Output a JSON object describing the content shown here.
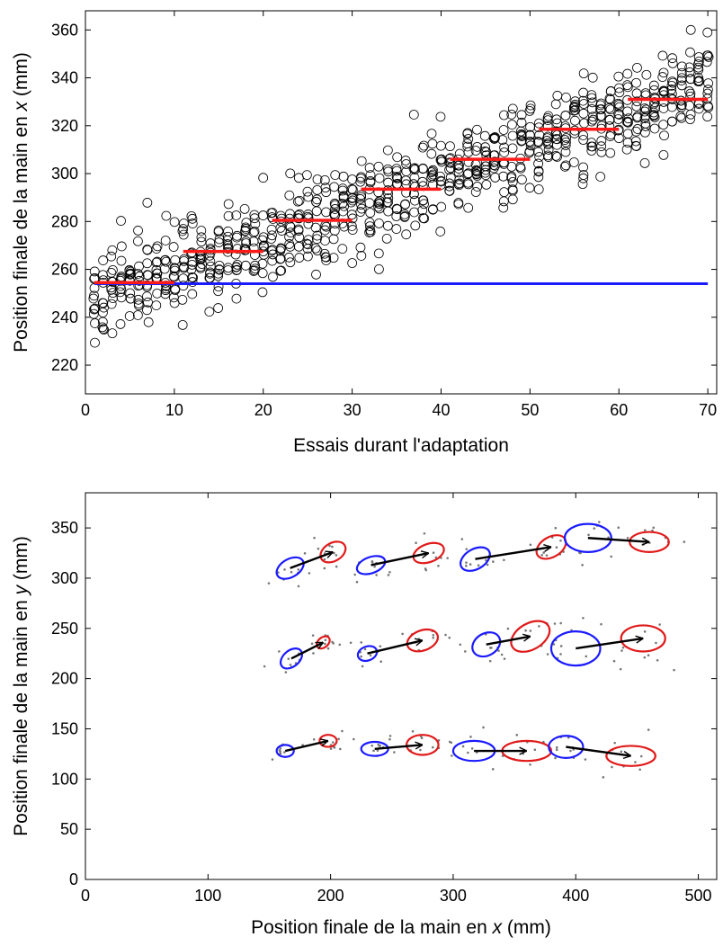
{
  "chart_data": [
    {
      "type": "scatter",
      "xlabel": "Essais durant l'adaptation",
      "ylabel_prefix": "Position finale de la main en ",
      "ylabel_var": "x",
      "ylabel_unit": " (mm)",
      "xlim": [
        0,
        71
      ],
      "ylim": [
        208,
        368
      ],
      "xticks": [
        "0",
        "10",
        "20",
        "30",
        "40",
        "50",
        "60",
        "70"
      ],
      "yticks": [
        "220",
        "240",
        "260",
        "280",
        "300",
        "320",
        "340",
        "360"
      ],
      "grid": false,
      "baseline": {
        "x": [
          1,
          70
        ],
        "y": 254,
        "color": "#1a1aff"
      },
      "block_means": {
        "color": "#ff1a1a",
        "segments": [
          {
            "x": [
              1,
              10
            ],
            "y": 254.5
          },
          {
            "x": [
              11,
              20
            ],
            "y": 267.5
          },
          {
            "x": [
              21,
              30
            ],
            "y": 280.5
          },
          {
            "x": [
              31,
              40
            ],
            "y": 293.5
          },
          {
            "x": [
              41,
              50
            ],
            "y": 306
          },
          {
            "x": [
              51,
              60
            ],
            "y": 318.5
          },
          {
            "x": [
              61,
              70
            ],
            "y": 331
          }
        ]
      },
      "scatter": {
        "marker": "open-circle",
        "color": "#000000",
        "points_per_trial": 12,
        "spread_sd": 9.5
      }
    },
    {
      "type": "scatter",
      "xlabel_prefix": "Position finale de la main en ",
      "xlabel_var": "x",
      "xlabel_unit": " (mm)",
      "ylabel_prefix": "Position finale de la main en ",
      "ylabel_var": "y",
      "ylabel_unit": " (mm)",
      "xlim": [
        0,
        515
      ],
      "ylim": [
        0,
        385
      ],
      "xticks": [
        "0",
        "100",
        "200",
        "300",
        "400",
        "500"
      ],
      "yticks": [
        "0",
        "50",
        "100",
        "150",
        "200",
        "250",
        "300",
        "350"
      ],
      "grid": false,
      "colors": {
        "start": "#1a1aff",
        "end": "#e01a1a",
        "arrow": "#000000",
        "dots": "#777777"
      },
      "targets": [
        {
          "start": [
            167,
            310
          ],
          "end": [
            202,
            326
          ],
          "sr": [
            12,
            9,
            30
          ],
          "er": [
            11,
            9,
            30
          ]
        },
        {
          "start": [
            233,
            313
          ],
          "end": [
            280,
            325
          ],
          "sr": [
            12,
            8,
            20
          ],
          "er": [
            13,
            9,
            20
          ]
        },
        {
          "start": [
            318,
            319
          ],
          "end": [
            380,
            331
          ],
          "sr": [
            13,
            10,
            30
          ],
          "er": [
            13,
            10,
            30
          ]
        },
        {
          "start": [
            410,
            340
          ],
          "end": [
            460,
            336
          ],
          "sr": [
            19,
            14,
            0
          ],
          "er": [
            16,
            10,
            0
          ]
        },
        {
          "start": [
            168,
            220
          ],
          "end": [
            194,
            236
          ],
          "sr": [
            10,
            8,
            40
          ],
          "er": [
            6,
            5,
            40
          ]
        },
        {
          "start": [
            230,
            225
          ],
          "end": [
            275,
            238
          ],
          "sr": [
            8,
            7,
            20
          ],
          "er": [
            13,
            10,
            20
          ]
        },
        {
          "start": [
            327,
            234
          ],
          "end": [
            363,
            242
          ],
          "sr": [
            12,
            11,
            30
          ],
          "er": [
            17,
            13,
            30
          ]
        },
        {
          "start": [
            400,
            230
          ],
          "end": [
            455,
            240
          ],
          "sr": [
            20,
            17,
            0
          ],
          "er": [
            18,
            13,
            0
          ]
        },
        {
          "start": [
            163,
            128
          ],
          "end": [
            198,
            138
          ],
          "sr": [
            7,
            6,
            0
          ],
          "er": [
            7,
            6,
            0
          ]
        },
        {
          "start": [
            236,
            130
          ],
          "end": [
            275,
            134
          ],
          "sr": [
            11,
            7,
            0
          ],
          "er": [
            13,
            10,
            0
          ]
        },
        {
          "start": [
            317,
            128
          ],
          "end": [
            360,
            128
          ],
          "sr": [
            17,
            10,
            0
          ],
          "er": [
            20,
            10,
            0
          ]
        },
        {
          "start": [
            392,
            132
          ],
          "end": [
            445,
            123
          ],
          "sr": [
            14,
            11,
            0
          ],
          "er": [
            20,
            10,
            0
          ]
        }
      ]
    }
  ]
}
